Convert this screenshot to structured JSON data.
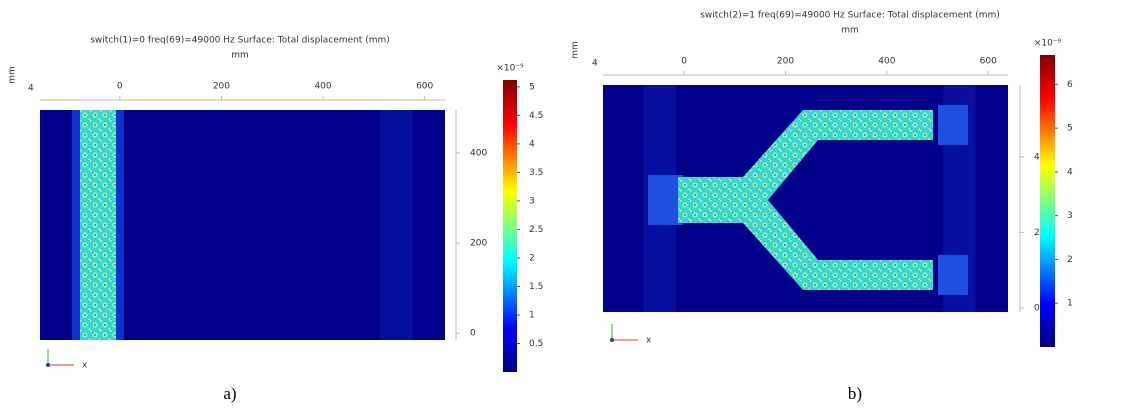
{
  "panels": [
    {
      "title": "switch(1)=0 freq(69)=49000 Hz   Surface: Total displacement (mm)",
      "units": "mm",
      "side_units": "mm",
      "corner": "4",
      "xticks": [
        0,
        200,
        400,
        600
      ],
      "xlim": [
        -157,
        640
      ],
      "yticks": [
        400,
        200,
        0
      ],
      "ylim": [
        -15,
        495
      ],
      "colorbar": {
        "exponent": "×10⁻⁹",
        "ticks": [
          0.5,
          1,
          1.5,
          2,
          2.5,
          3,
          3.5,
          4,
          4.5,
          5
        ],
        "lim": [
          0,
          5.12
        ]
      },
      "triad_label": "x",
      "label": "a)"
    },
    {
      "title": "switch(2)=1 freq(69)=49000 Hz   Surface: Total displacement (mm)",
      "units": "mm",
      "side_units": "mm",
      "corner": "4",
      "xticks": [
        0,
        200,
        400,
        600
      ],
      "xlim": [
        -160,
        639
      ],
      "yticks": [
        400,
        200,
        0
      ],
      "ylim": [
        -11,
        591
      ],
      "colorbar": {
        "exponent": "×10⁻⁹",
        "ticks": [
          1,
          2,
          3,
          4,
          5,
          6
        ],
        "lim": [
          0,
          6.67
        ]
      },
      "triad_label": "x",
      "label": "b)"
    }
  ]
}
